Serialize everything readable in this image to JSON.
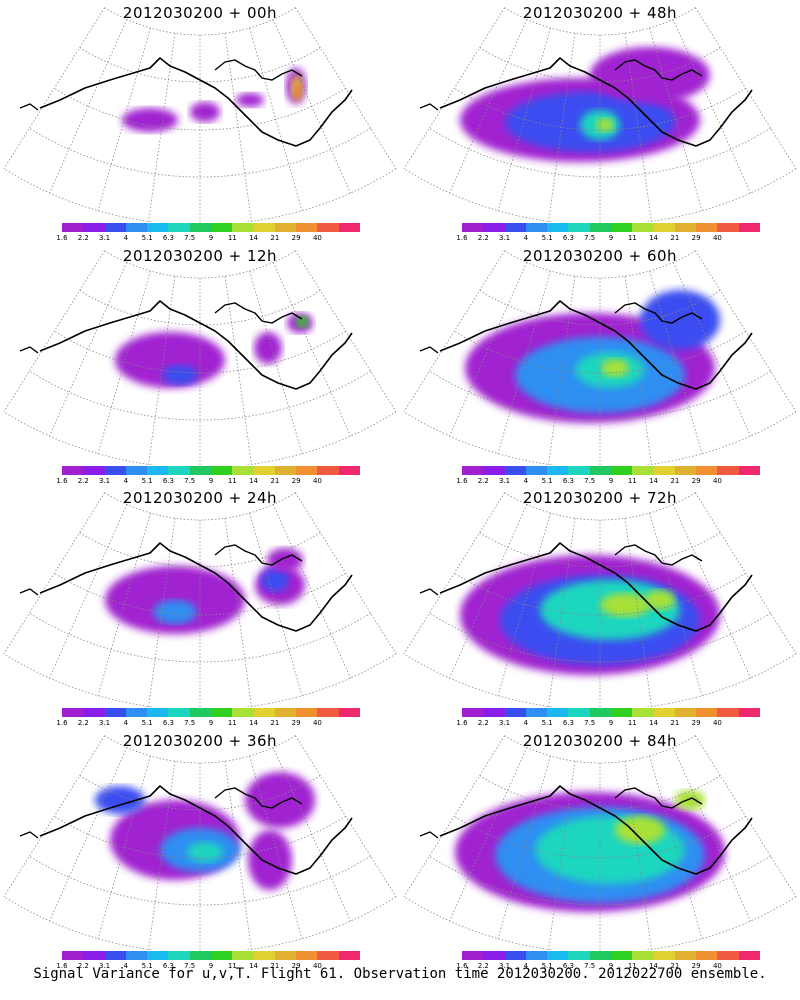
{
  "panels": [
    {
      "title": "2012030200 + 00h",
      "lead_hours": 0
    },
    {
      "title": "2012030200 + 48h",
      "lead_hours": 48
    },
    {
      "title": "2012030200 + 12h",
      "lead_hours": 12
    },
    {
      "title": "2012030200 + 60h",
      "lead_hours": 60
    },
    {
      "title": "2012030200 + 24h",
      "lead_hours": 24
    },
    {
      "title": "2012030200 + 72h",
      "lead_hours": 72
    },
    {
      "title": "2012030200 + 36h",
      "lead_hours": 36
    },
    {
      "title": "2012030200 + 84h",
      "lead_hours": 84
    }
  ],
  "colorbar": {
    "colors": [
      "#a020d0",
      "#8a1ee8",
      "#3a4ef0",
      "#2e8ef2",
      "#1cb8f0",
      "#1ed6c0",
      "#20c860",
      "#30d020",
      "#a8e038",
      "#e0d030",
      "#e0b030",
      "#f09030",
      "#f05a40",
      "#f0286e"
    ],
    "labels": [
      "1.6",
      "2.2",
      "3.1",
      "4",
      "5.1",
      "6.3",
      "7.5",
      "9",
      "11",
      "14",
      "21",
      "29",
      "40"
    ]
  },
  "footer": "Signal Variance for u,v,T. Flight 61. Observation time 2012030200. 2012022700 ensemble."
}
